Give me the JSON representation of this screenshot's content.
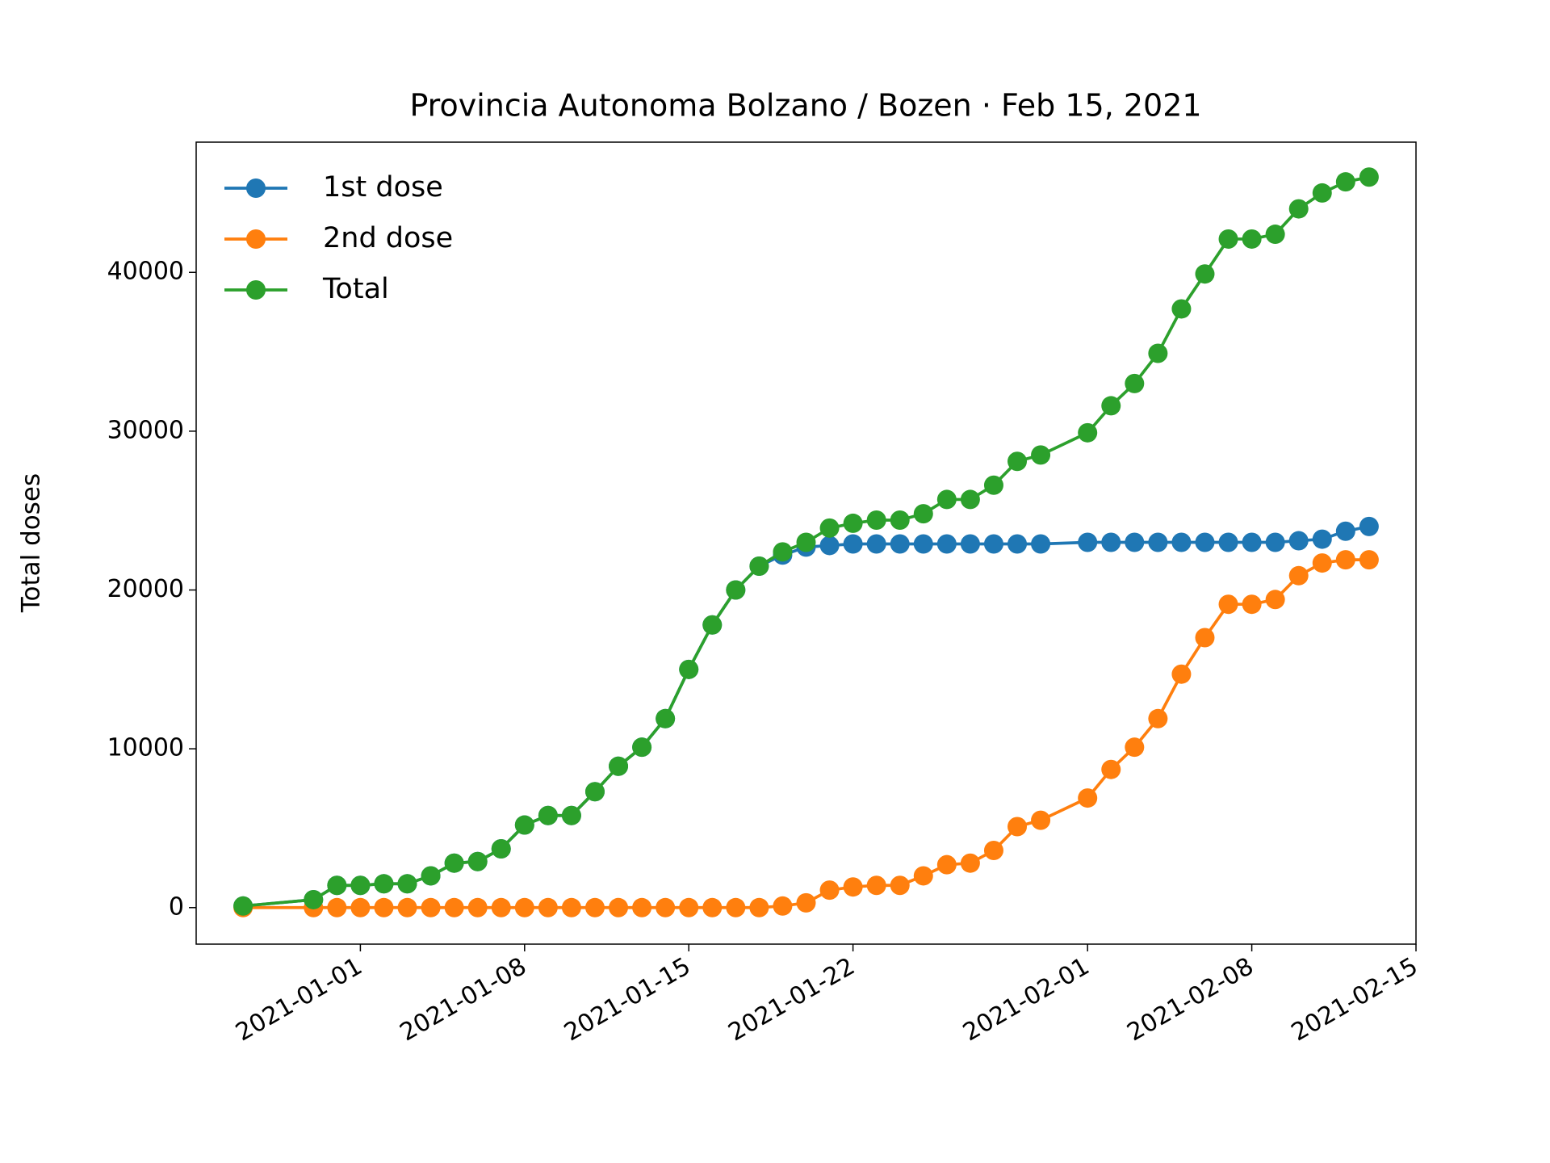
{
  "chart_data": {
    "type": "line",
    "title": "Provincia Autonoma Bolzano / Bozen · Feb 15, 2021",
    "y_label": "Total doses",
    "x": [
      "2020-12-27",
      "2020-12-30",
      "2020-12-31",
      "2021-01-01",
      "2021-01-02",
      "2021-01-03",
      "2021-01-04",
      "2021-01-05",
      "2021-01-06",
      "2021-01-07",
      "2021-01-08",
      "2021-01-09",
      "2021-01-10",
      "2021-01-11",
      "2021-01-12",
      "2021-01-13",
      "2021-01-14",
      "2021-01-15",
      "2021-01-16",
      "2021-01-17",
      "2021-01-18",
      "2021-01-19",
      "2021-01-20",
      "2021-01-21",
      "2021-01-22",
      "2021-01-23",
      "2021-01-24",
      "2021-01-25",
      "2021-01-26",
      "2021-01-27",
      "2021-01-28",
      "2021-01-29",
      "2021-01-30",
      "2021-02-01",
      "2021-02-02",
      "2021-02-03",
      "2021-02-04",
      "2021-02-05",
      "2021-02-06",
      "2021-02-07",
      "2021-02-08",
      "2021-02-09",
      "2021-02-10",
      "2021-02-11",
      "2021-02-12",
      "2021-02-13"
    ],
    "series": [
      {
        "name": "1st dose",
        "color": "#1f77b4",
        "values": [
          100,
          500,
          1400,
          1400,
          1500,
          1500,
          2000,
          2800,
          2900,
          3700,
          5200,
          5800,
          5800,
          7300,
          8900,
          10100,
          11900,
          15000,
          17800,
          20000,
          21500,
          22200,
          22700,
          22800,
          22900,
          22900,
          22900,
          22900,
          22900,
          22900,
          22900,
          22900,
          22900,
          23000,
          23000,
          23000,
          23000,
          23000,
          23000,
          23000,
          23000,
          23000,
          23100,
          23200,
          23700,
          24000
        ]
      },
      {
        "name": "2nd dose",
        "color": "#ff7f0e",
        "values": [
          0,
          0,
          0,
          0,
          0,
          0,
          0,
          0,
          0,
          0,
          0,
          0,
          0,
          0,
          0,
          0,
          0,
          0,
          0,
          0,
          0,
          100,
          300,
          1100,
          1300,
          1400,
          1400,
          2000,
          2700,
          2800,
          3600,
          5100,
          5500,
          6900,
          8700,
          10100,
          11900,
          14700,
          17000,
          19100,
          19100,
          19400,
          20900,
          21700,
          21900,
          21900
        ]
      },
      {
        "name": "Total",
        "color": "#2ca02c",
        "values": [
          100,
          500,
          1400,
          1400,
          1500,
          1500,
          2000,
          2800,
          2900,
          3700,
          5200,
          5800,
          5800,
          7300,
          8900,
          10100,
          11900,
          15000,
          17800,
          20000,
          21500,
          22400,
          23000,
          23900,
          24200,
          24400,
          24400,
          24800,
          25700,
          25700,
          26600,
          28100,
          28500,
          29900,
          31600,
          33000,
          34900,
          37700,
          39900,
          42100,
          42100,
          42400,
          44000,
          45000,
          45700,
          46000
        ]
      }
    ],
    "xlim": [
      "2020-12-25",
      "2021-02-15"
    ],
    "xticks": [
      "2021-01-01",
      "2021-01-08",
      "2021-01-15",
      "2021-01-22",
      "2021-02-01",
      "2021-02-08",
      "2021-02-15"
    ],
    "ylim": [
      -2300,
      48200
    ],
    "yticks": [
      0,
      10000,
      20000,
      30000,
      40000
    ],
    "legend": "upper left",
    "grid": false
  }
}
